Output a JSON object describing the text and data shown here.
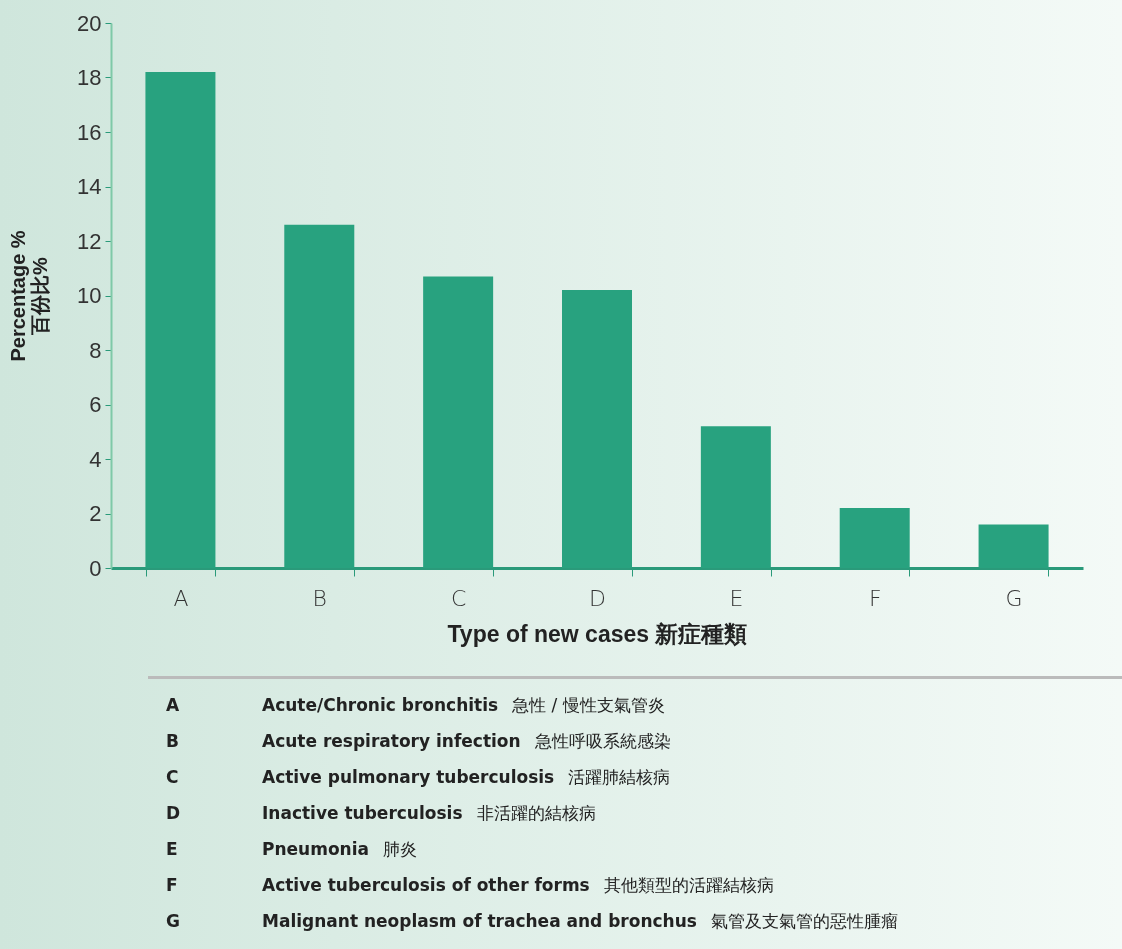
{
  "chart_data": {
    "type": "bar",
    "xlabel": "Type of new cases   新症種類",
    "ylabel": "Percentage %\n百份比%",
    "categories": [
      "A",
      "B",
      "C",
      "D",
      "E",
      "F",
      "G"
    ],
    "values": [
      18.2,
      12.6,
      10.7,
      10.2,
      5.2,
      2.2,
      1.6
    ],
    "color": "#28a27f",
    "ylim": [
      0,
      20
    ],
    "yticks": [
      0,
      2,
      4,
      6,
      8,
      10,
      12,
      14,
      16,
      18,
      20
    ],
    "grid": false,
    "annotations": [
      "A   Acute/Chronic bronchitis   急性 / 慢性支氣管炎",
      "B   Acute respiratory infection   急性呼吸系統感染",
      "C   Active pulmonary tuberculosis   活躍肺結核病",
      "D   Inactive tuberculosis   非活躍的結核病",
      "E   Pneumonia   肺炎",
      "F   Active tuberculosis of other forms   其他類型的活躍結核病",
      "G   Malignant neoplasm of trachea and bronchus   氣管及支氣管的惡性腫瘤"
    ]
  }
}
